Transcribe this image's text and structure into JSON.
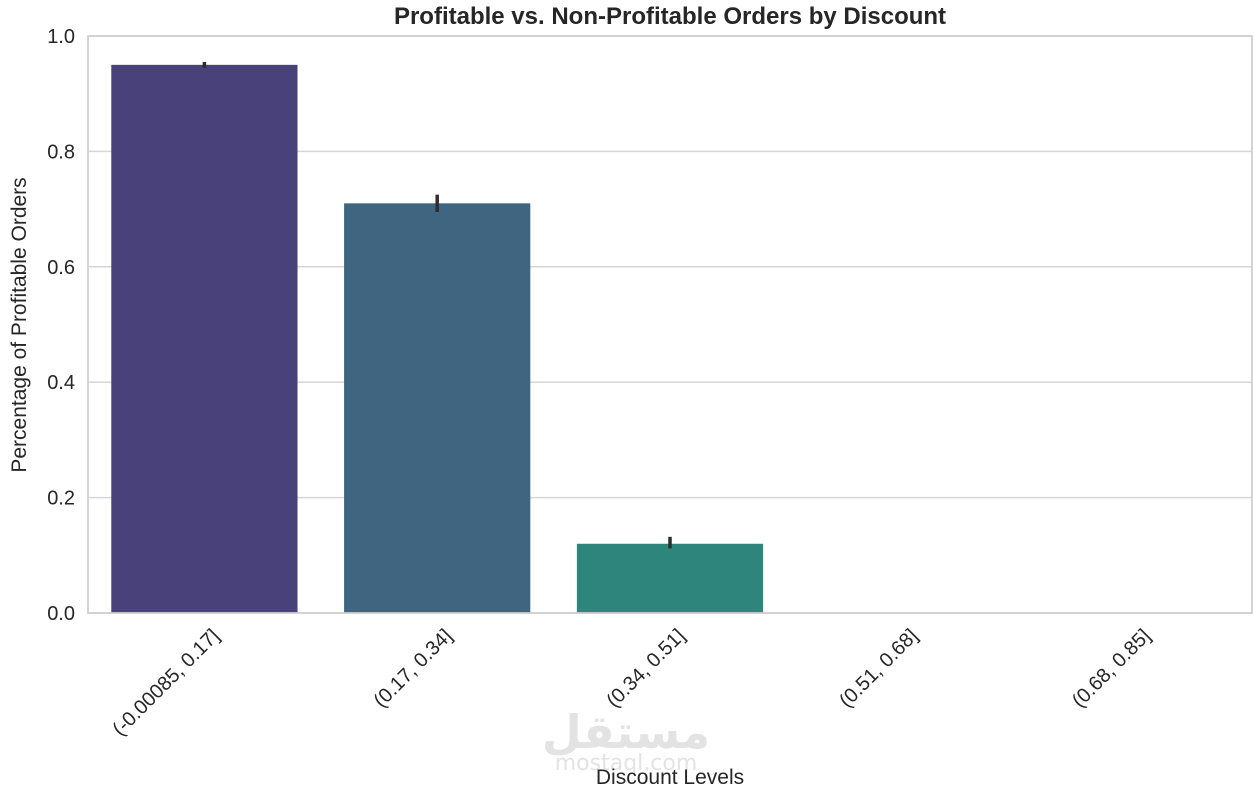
{
  "chart_data": {
    "type": "bar",
    "title": "Profitable vs. Non-Profitable Orders by Discount",
    "xlabel": "Discount Levels",
    "ylabel": "Percentage of Profitable Orders",
    "categories": [
      "(-0.00085, 0.17]",
      "(0.17, 0.34]",
      "(0.34, 0.51]",
      "(0.51, 0.68]",
      "(0.68, 0.85]"
    ],
    "values": [
      0.95,
      0.71,
      0.12,
      0.0,
      0.0
    ],
    "error_bars": [
      [
        0.945,
        0.955
      ],
      [
        0.695,
        0.725
      ],
      [
        0.112,
        0.132
      ],
      null,
      null
    ],
    "colors": [
      "#48417a",
      "#3f6581",
      "#2e857c",
      "#2aa07a",
      "#5fbd65"
    ],
    "ylim": [
      0,
      1.0
    ],
    "yticks": [
      0.0,
      0.2,
      0.4,
      0.6,
      0.8,
      1.0
    ],
    "ytick_labels": [
      "0.0",
      "0.2",
      "0.4",
      "0.6",
      "0.8",
      "1.0"
    ],
    "grid": "horizontal",
    "legend": "none"
  },
  "watermark": {
    "arabic": "مستقل",
    "latin": "mostaql.com"
  }
}
